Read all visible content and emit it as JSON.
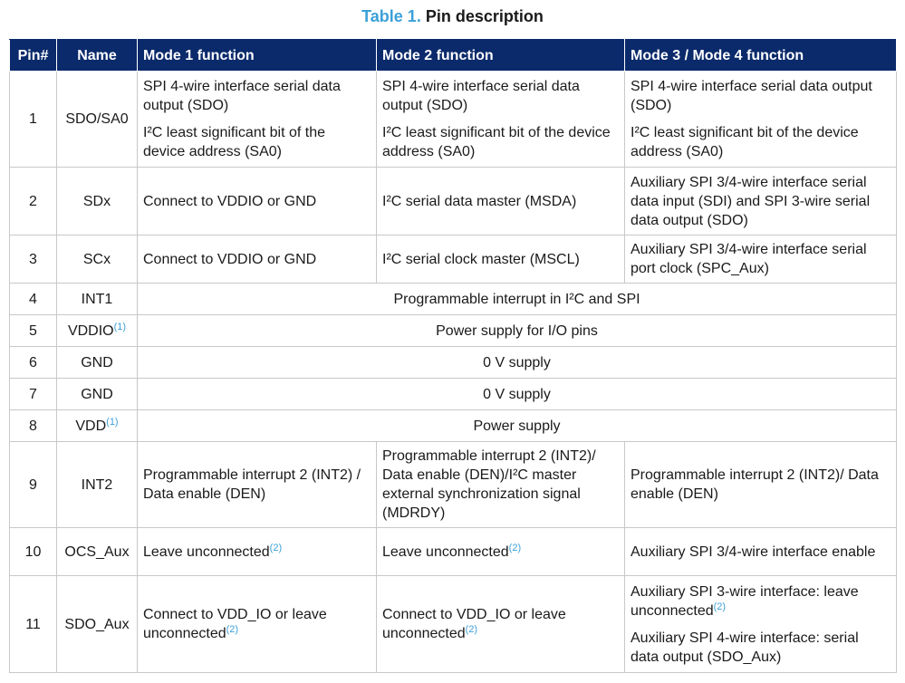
{
  "caption": {
    "label": "Table 1.",
    "title": "Pin description"
  },
  "headers": {
    "pin": "Pin#",
    "name": "Name",
    "mode1": "Mode 1 function",
    "mode2": "Mode 2 function",
    "mode34": "Mode 3 / Mode 4 function"
  },
  "rows": {
    "r1": {
      "pin": "1",
      "name": "SDO/SA0",
      "m1a": "SPI 4-wire interface serial data output (SDO)",
      "m1b": "I²C least significant bit of the device address (SA0)",
      "m2a": "SPI 4-wire interface serial data output (SDO)",
      "m2b": "I²C least significant bit of the device address (SA0)",
      "m3a": "SPI 4-wire interface serial data output (SDO)",
      "m3b": "I²C least significant bit of the device address (SA0)"
    },
    "r2": {
      "pin": "2",
      "name": "SDx",
      "m1": "Connect to VDDIO or GND",
      "m2": "I²C serial data master (MSDA)",
      "m3": "Auxiliary SPI 3/4-wire interface serial data input (SDI) and SPI 3-wire serial data output (SDO)"
    },
    "r3": {
      "pin": "3",
      "name": "SCx",
      "m1": "Connect to VDDIO or GND",
      "m2": "I²C serial clock master (MSCL)",
      "m3": "Auxiliary SPI 3/4-wire interface serial port clock (SPC_Aux)"
    },
    "r4": {
      "pin": "4",
      "name": "INT1",
      "all": "Programmable interrupt in I²C and SPI"
    },
    "r5": {
      "pin": "5",
      "name": "VDDIO",
      "fn": "(1)",
      "all": "Power supply for I/O pins"
    },
    "r6": {
      "pin": "6",
      "name": "GND",
      "all": "0 V supply"
    },
    "r7": {
      "pin": "7",
      "name": "GND",
      "all": "0 V supply"
    },
    "r8": {
      "pin": "8",
      "name": "VDD",
      "fn": "(1)",
      "all": "Power supply"
    },
    "r9": {
      "pin": "9",
      "name": "INT2",
      "m1": "Programmable interrupt 2 (INT2) / Data enable (DEN)",
      "m2": "Programmable interrupt 2 (INT2)/ Data enable (DEN)/I²C master external synchronization signal (MDRDY)",
      "m3": "Programmable interrupt 2 (INT2)/ Data enable (DEN)"
    },
    "r10": {
      "pin": "10",
      "name": "OCS_Aux",
      "m1": "Leave unconnected",
      "m1fn": "(2)",
      "m2": "Leave unconnected",
      "m2fn": "(2)",
      "m3": "Auxiliary SPI 3/4-wire interface enable"
    },
    "r11": {
      "pin": "11",
      "name": "SDO_Aux",
      "m1": "Connect to VDD_IO or leave unconnected",
      "m1fn": "(2)",
      "m2": "Connect to VDD_IO or leave unconnected",
      "m2fn": "(2)",
      "m3a": "Auxiliary SPI 3-wire interface: leave unconnected",
      "m3afn": "(2)",
      "m3b": "Auxiliary SPI 4-wire interface: serial data output (SDO_Aux)"
    }
  },
  "colors": {
    "header_bg": "#0b2a6b",
    "accent": "#3ca0d8",
    "grid": "#c8c8c8"
  }
}
